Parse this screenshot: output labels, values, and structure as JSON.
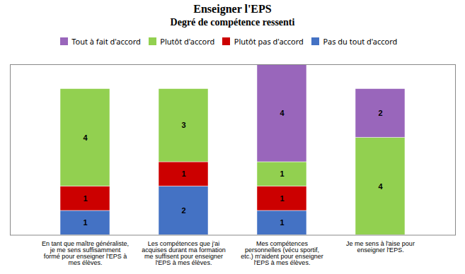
{
  "chart_data": {
    "type": "bar",
    "title": "Enseigner l'EPS",
    "subtitle": "Degré de compétence ressenti",
    "categories": [
      "En tant que maître généraliste,\nje me sens suffisamment\nformé pour enseigner l'EPS à\nmes élèves.",
      "Les compétences que j'ai\nacquises durant ma formation\nme suffisent pour enseigner\nl'EPS à mes élèves.",
      "Mes compétences\npersonnelles (vécu sportif,\netc.) m'aident pour enseigner\nl'EPS à mes élèves.",
      "Je me sens à l'aise pour\nenseigner l'EPS."
    ],
    "series": [
      {
        "name": "Pas du tout d'accord",
        "color": "#4472C4",
        "values": [
          1,
          2,
          1,
          0
        ]
      },
      {
        "name": "Plutôt pas d'accord",
        "color": "#CC0000",
        "values": [
          1,
          1,
          1,
          0
        ]
      },
      {
        "name": "Plutôt d'accord",
        "color": "#92D050",
        "values": [
          4,
          3,
          1,
          4
        ]
      },
      {
        "name": "Tout à fait d'accord",
        "color": "#9966BB",
        "values": [
          0,
          0,
          4,
          2
        ]
      }
    ],
    "stacked": true,
    "ylim": [
      0,
      7
    ],
    "yticks": [],
    "tick_labels": "x",
    "data_labels": true,
    "legend": "top",
    "grid": false
  }
}
